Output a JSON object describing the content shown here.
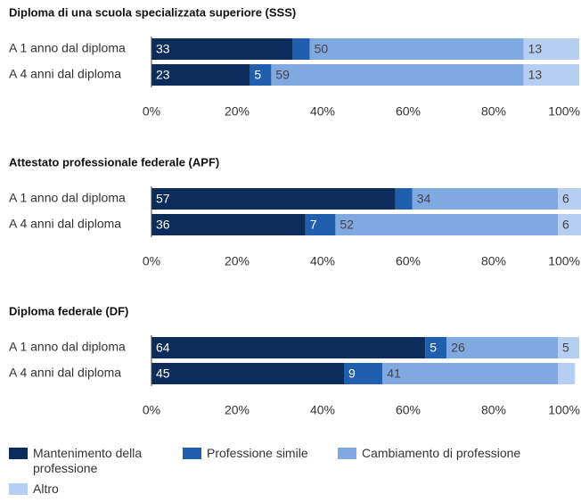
{
  "chart_data": [
    {
      "type": "bar",
      "orientation": "horizontal",
      "stacked": true,
      "title": "Diploma di una scuola specializzata superiore (SSS)",
      "categories": [
        "A 1 anno dal diploma",
        "A 4 anni dal diploma"
      ],
      "series": [
        {
          "name": "Mantenimento della professione",
          "color": "#0c2c5c",
          "values": [
            33,
            23
          ]
        },
        {
          "name": "Professione simile",
          "color": "#1f5fae",
          "values": [
            4,
            5
          ]
        },
        {
          "name": "Cambiamento di professione",
          "color": "#80a9e1",
          "values": [
            50,
            59
          ]
        },
        {
          "name": "Altro",
          "color": "#b5cef2",
          "values": [
            13,
            13
          ]
        }
      ],
      "xlim": [
        0,
        100
      ],
      "xticks": [
        {
          "value": 0,
          "label": "0%"
        },
        {
          "value": 20,
          "label": "20%"
        },
        {
          "value": 40,
          "label": "40%"
        },
        {
          "value": 60,
          "label": "60%"
        },
        {
          "value": 80,
          "label": "80%"
        },
        {
          "value": 100,
          "label": "100%"
        }
      ]
    },
    {
      "type": "bar",
      "orientation": "horizontal",
      "stacked": true,
      "title": "Attestato professionale federale (APF)",
      "categories": [
        "A 1 anno dal diploma",
        "A 4 anni dal diploma"
      ],
      "series": [
        {
          "name": "Mantenimento della professione",
          "color": "#0c2c5c",
          "values": [
            57,
            36
          ]
        },
        {
          "name": "Professione simile",
          "color": "#1f5fae",
          "values": [
            4,
            7
          ]
        },
        {
          "name": "Cambiamento di professione",
          "color": "#80a9e1",
          "values": [
            34,
            52
          ]
        },
        {
          "name": "Altro",
          "color": "#b5cef2",
          "values": [
            6,
            6
          ]
        }
      ],
      "xlim": [
        0,
        100
      ],
      "xticks": [
        {
          "value": 0,
          "label": "0%"
        },
        {
          "value": 20,
          "label": "20%"
        },
        {
          "value": 40,
          "label": "40%"
        },
        {
          "value": 60,
          "label": "60%"
        },
        {
          "value": 80,
          "label": "80%"
        },
        {
          "value": 100,
          "label": "100%"
        }
      ]
    },
    {
      "type": "bar",
      "orientation": "horizontal",
      "stacked": true,
      "title": "Diploma federale (DF)",
      "categories": [
        "A 1 anno dal diploma",
        "A 4 anni dal diploma"
      ],
      "series": [
        {
          "name": "Mantenimento della professione",
          "color": "#0c2c5c",
          "values": [
            64,
            45
          ]
        },
        {
          "name": "Professione simile",
          "color": "#1f5fae",
          "values": [
            5,
            9
          ]
        },
        {
          "name": "Cambiamento di professione",
          "color": "#80a9e1",
          "values": [
            26,
            41
          ]
        },
        {
          "name": "Altro",
          "color": "#b5cef2",
          "values": [
            5,
            4
          ]
        }
      ],
      "xlim": [
        0,
        100
      ],
      "xticks": [
        {
          "value": 0,
          "label": "0%"
        },
        {
          "value": 20,
          "label": "20%"
        },
        {
          "value": 40,
          "label": "40%"
        },
        {
          "value": 60,
          "label": "60%"
        },
        {
          "value": 80,
          "label": "80%"
        },
        {
          "value": 100,
          "label": "100%"
        }
      ]
    }
  ]
}
